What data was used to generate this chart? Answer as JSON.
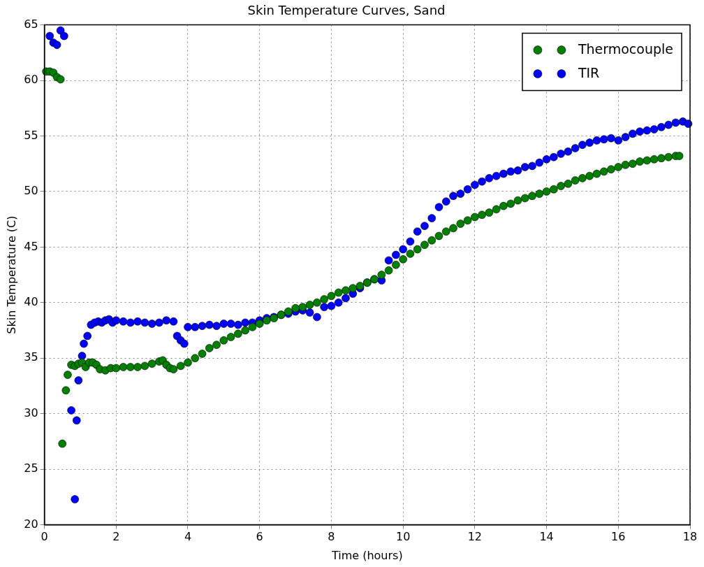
{
  "chart_data": {
    "type": "scatter",
    "title": "Skin Temperature Curves, Sand",
    "xlabel": "Time (hours)",
    "ylabel": "Skin Temperature (C)",
    "xlim": [
      0,
      18
    ],
    "ylim": [
      20,
      65
    ],
    "xticks": [
      0,
      2,
      4,
      6,
      8,
      10,
      12,
      14,
      16,
      18
    ],
    "yticks": [
      20,
      25,
      30,
      35,
      40,
      45,
      50,
      55,
      60,
      65
    ],
    "grid": true,
    "legend": "top right",
    "marker": "circle",
    "series": [
      {
        "name": "Thermocouple",
        "color": "#007f00",
        "x": [
          0.05,
          0.15,
          0.25,
          0.35,
          0.45,
          0.5,
          0.6,
          0.65,
          0.75,
          0.85,
          0.95,
          1.05,
          1.15,
          1.25,
          1.35,
          1.45,
          1.55,
          1.7,
          1.85,
          2.0,
          2.2,
          2.4,
          2.6,
          2.8,
          3.0,
          3.2,
          3.3,
          3.4,
          3.5,
          3.6,
          3.8,
          4.0,
          4.2,
          4.4,
          4.6,
          4.8,
          5.0,
          5.2,
          5.4,
          5.6,
          5.8,
          6.0,
          6.2,
          6.4,
          6.6,
          6.8,
          7.0,
          7.2,
          7.4,
          7.6,
          7.8,
          8.0,
          8.2,
          8.4,
          8.6,
          8.8,
          9.0,
          9.2,
          9.4,
          9.6,
          9.8,
          10.0,
          10.2,
          10.4,
          10.6,
          10.8,
          11.0,
          11.2,
          11.4,
          11.6,
          11.8,
          12.0,
          12.2,
          12.4,
          12.6,
          12.8,
          13.0,
          13.2,
          13.4,
          13.6,
          13.8,
          14.0,
          14.2,
          14.4,
          14.6,
          14.8,
          15.0,
          15.2,
          15.4,
          15.6,
          15.8,
          16.0,
          16.2,
          16.4,
          16.6,
          16.8,
          17.0,
          17.2,
          17.4,
          17.6,
          17.7
        ],
        "values": [
          60.8,
          60.8,
          60.7,
          60.3,
          60.1,
          27.3,
          32.1,
          33.5,
          34.4,
          34.3,
          34.5,
          34.6,
          34.2,
          34.6,
          34.6,
          34.4,
          34.0,
          33.9,
          34.1,
          34.1,
          34.2,
          34.2,
          34.2,
          34.3,
          34.5,
          34.7,
          34.8,
          34.4,
          34.1,
          34.0,
          34.3,
          34.6,
          35.0,
          35.4,
          35.9,
          36.2,
          36.6,
          36.9,
          37.2,
          37.5,
          37.8,
          38.1,
          38.4,
          38.6,
          38.9,
          39.2,
          39.5,
          39.6,
          39.8,
          40.0,
          40.3,
          40.6,
          40.9,
          41.1,
          41.3,
          41.5,
          41.8,
          42.1,
          42.5,
          42.9,
          43.4,
          43.9,
          44.4,
          44.8,
          45.2,
          45.6,
          46.0,
          46.4,
          46.7,
          47.1,
          47.4,
          47.7,
          47.9,
          48.1,
          48.4,
          48.7,
          48.9,
          49.2,
          49.4,
          49.6,
          49.8,
          50.0,
          50.2,
          50.5,
          50.7,
          51.0,
          51.2,
          51.4,
          51.6,
          51.8,
          52.0,
          52.2,
          52.4,
          52.5,
          52.7,
          52.8,
          52.9,
          53.0,
          53.1,
          53.2,
          53.2
        ]
      },
      {
        "name": "TIR",
        "color": "#0000ff",
        "x": [
          0.15,
          0.25,
          0.35,
          0.45,
          0.55,
          0.75,
          0.85,
          0.9,
          0.95,
          1.05,
          1.1,
          1.2,
          1.3,
          1.4,
          1.5,
          1.6,
          1.7,
          1.8,
          1.9,
          2.0,
          2.2,
          2.4,
          2.6,
          2.8,
          3.0,
          3.2,
          3.4,
          3.6,
          3.7,
          3.8,
          3.9,
          4.0,
          4.2,
          4.4,
          4.6,
          4.8,
          5.0,
          5.2,
          5.4,
          5.6,
          5.8,
          6.0,
          6.2,
          6.4,
          6.6,
          6.8,
          7.0,
          7.2,
          7.4,
          7.6,
          7.8,
          8.0,
          8.2,
          8.4,
          8.6,
          8.8,
          9.0,
          9.2,
          9.4,
          9.6,
          9.8,
          10.0,
          10.2,
          10.4,
          10.6,
          10.8,
          11.0,
          11.2,
          11.4,
          11.6,
          11.8,
          12.0,
          12.2,
          12.4,
          12.6,
          12.8,
          13.0,
          13.2,
          13.4,
          13.6,
          13.8,
          14.0,
          14.2,
          14.4,
          14.6,
          14.8,
          15.0,
          15.2,
          15.4,
          15.6,
          15.8,
          16.0,
          16.2,
          16.4,
          16.6,
          16.8,
          17.0,
          17.2,
          17.4,
          17.6,
          17.8,
          17.95
        ],
        "values": [
          64.0,
          63.4,
          63.2,
          64.5,
          64.0,
          30.3,
          22.3,
          29.4,
          33.0,
          35.2,
          36.3,
          37.0,
          38.0,
          38.2,
          38.3,
          38.2,
          38.4,
          38.5,
          38.2,
          38.4,
          38.3,
          38.2,
          38.3,
          38.2,
          38.1,
          38.2,
          38.4,
          38.3,
          37.0,
          36.6,
          36.3,
          37.8,
          37.8,
          37.9,
          38.0,
          37.9,
          38.1,
          38.1,
          38.0,
          38.2,
          38.2,
          38.4,
          38.6,
          38.7,
          38.9,
          39.0,
          39.2,
          39.3,
          39.1,
          38.7,
          39.6,
          39.7,
          40.0,
          40.4,
          40.8,
          41.3,
          41.8,
          42.1,
          42.0,
          43.8,
          44.3,
          44.8,
          45.5,
          46.4,
          46.9,
          47.6,
          48.6,
          49.1,
          49.6,
          49.8,
          50.2,
          50.6,
          50.9,
          51.2,
          51.4,
          51.6,
          51.8,
          51.9,
          52.2,
          52.3,
          52.6,
          52.9,
          53.1,
          53.4,
          53.6,
          53.9,
          54.2,
          54.4,
          54.6,
          54.7,
          54.8,
          54.6,
          54.9,
          55.2,
          55.4,
          55.5,
          55.6,
          55.8,
          56.0,
          56.2,
          56.3,
          56.1
        ]
      }
    ]
  }
}
